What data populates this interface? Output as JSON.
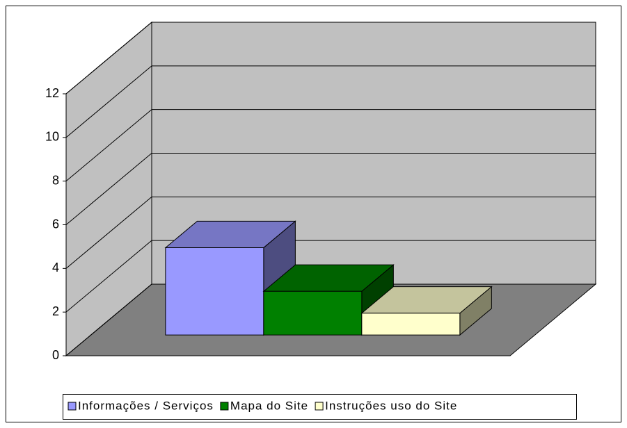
{
  "chart_data": {
    "type": "bar3d",
    "categories": [
      null
    ],
    "series": [
      {
        "name": "Informações / Serviços",
        "color": "#9999ff",
        "values": [
          4
        ]
      },
      {
        "name": "Mapa do Site",
        "color": "#008000",
        "values": [
          2
        ]
      },
      {
        "name": "Instruções uso do Site",
        "color": "#ffffcc",
        "values": [
          1
        ]
      }
    ],
    "ylim": [
      0,
      12
    ],
    "yticks": [
      0,
      2,
      4,
      6,
      8,
      10,
      12
    ],
    "grid": true,
    "legend": "bottom"
  }
}
